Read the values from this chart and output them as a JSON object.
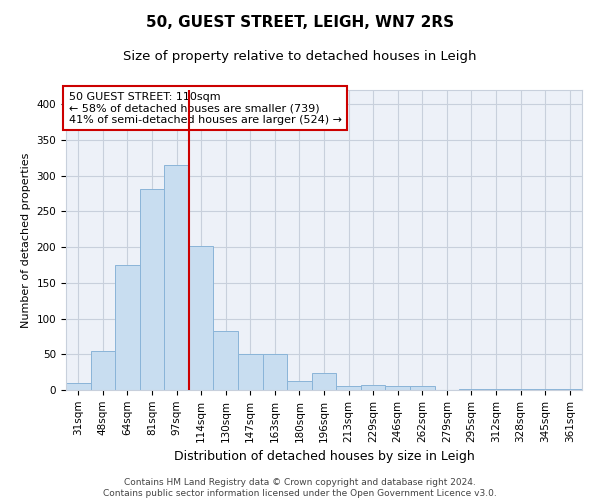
{
  "title1": "50, GUEST STREET, LEIGH, WN7 2RS",
  "title2": "Size of property relative to detached houses in Leigh",
  "xlabel": "Distribution of detached houses by size in Leigh",
  "ylabel": "Number of detached properties",
  "categories": [
    "31sqm",
    "48sqm",
    "64sqm",
    "81sqm",
    "97sqm",
    "114sqm",
    "130sqm",
    "147sqm",
    "163sqm",
    "180sqm",
    "196sqm",
    "213sqm",
    "229sqm",
    "246sqm",
    "262sqm",
    "279sqm",
    "295sqm",
    "312sqm",
    "328sqm",
    "345sqm",
    "361sqm"
  ],
  "values": [
    10,
    54,
    175,
    281,
    315,
    202,
    83,
    51,
    51,
    13,
    24,
    5,
    7,
    5,
    6,
    0,
    2,
    2,
    1,
    1,
    1
  ],
  "bar_color": "#c8ddf0",
  "bar_edge_color": "#8ab4d8",
  "vline_x": 4.5,
  "vline_color": "#cc0000",
  "annotation_text": "50 GUEST STREET: 110sqm\n← 58% of detached houses are smaller (739)\n41% of semi-detached houses are larger (524) →",
  "annotation_box_color": "white",
  "annotation_box_edge": "#cc0000",
  "ylim": [
    0,
    420
  ],
  "yticks": [
    0,
    50,
    100,
    150,
    200,
    250,
    300,
    350,
    400
  ],
  "grid_color": "#c8d0dc",
  "bg_color": "#edf1f8",
  "footer": "Contains HM Land Registry data © Crown copyright and database right 2024.\nContains public sector information licensed under the Open Government Licence v3.0.",
  "title1_fontsize": 11,
  "title2_fontsize": 9.5,
  "xlabel_fontsize": 9,
  "ylabel_fontsize": 8,
  "tick_fontsize": 7.5,
  "ann_fontsize": 8,
  "footer_fontsize": 6.5
}
